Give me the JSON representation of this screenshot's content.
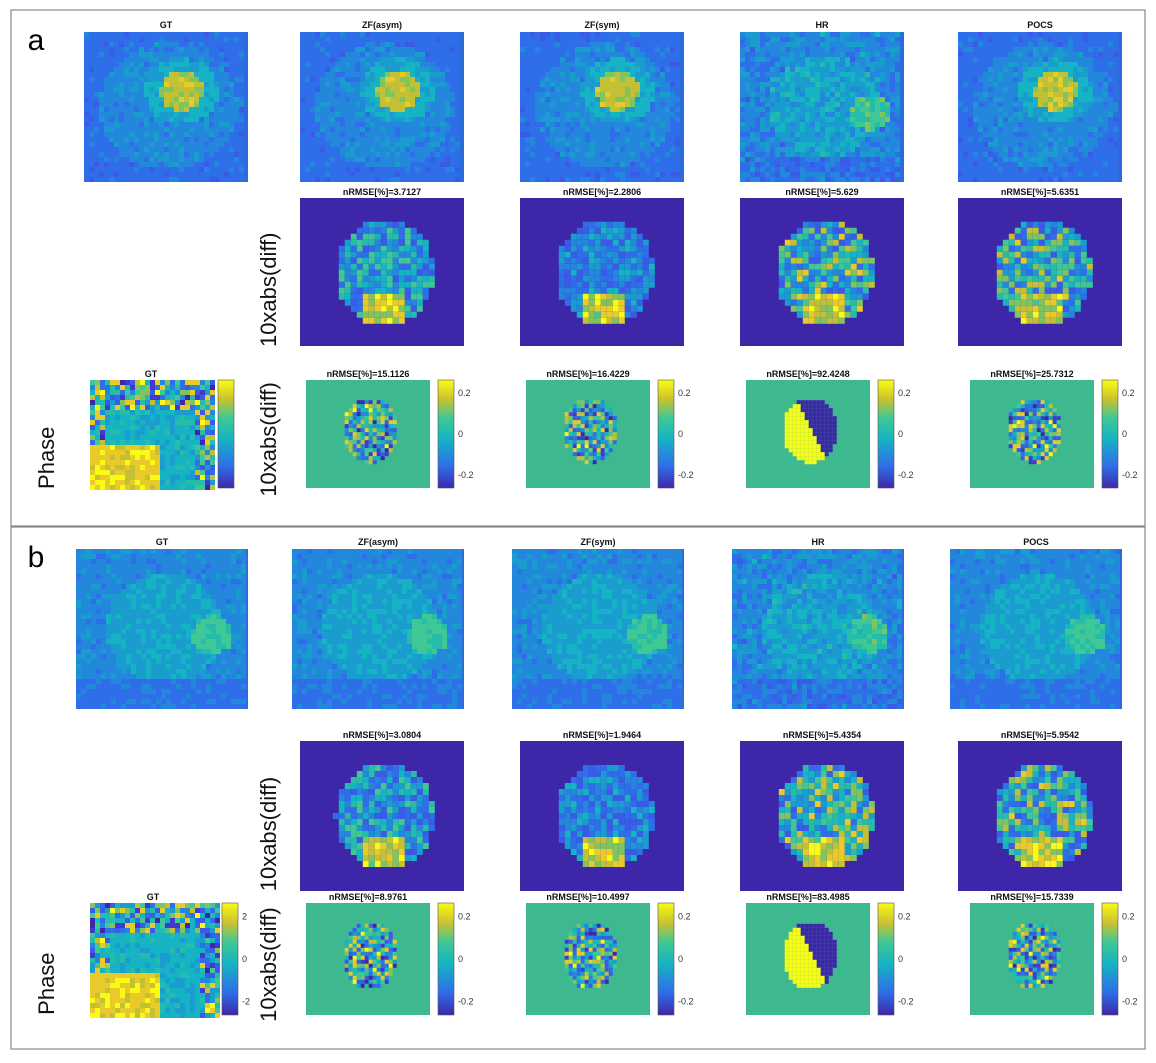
{
  "colors": {
    "parula_dark": "#3e26a8",
    "parula_blue": "#2f6ee9",
    "parula_teal": "#15b3c4",
    "parula_green": "#3fc895",
    "parula_yellow": "#f9fb15",
    "phase_bg": "#3eb98f",
    "panel_border": "#888888"
  },
  "panels": [
    {
      "letter": "a",
      "magnitude_titles": [
        "GT",
        "ZF(asym)",
        "ZF(sym)",
        "HR",
        "POCS"
      ],
      "diff_row_label": "10xabs(diff)",
      "diff_titles": [
        "nRMSE[%]=3.7127",
        "nRMSE[%]=2.2806",
        "nRMSE[%]=5.629",
        "nRMSE[%]=5.6351"
      ],
      "phase_row_label": "Phase",
      "phase_diff_row_label": "10xabs(diff)",
      "phase_gt_title": "GT",
      "phase_titles": [
        "nRMSE[%]=15.1126",
        "nRMSE[%]=16.4229",
        "nRMSE[%]=92.4248",
        "nRMSE[%]=25.7312"
      ],
      "gt_colorbar_ticks": [],
      "diff_colorbar_ticks": [
        "0.2",
        "0",
        "-0.2"
      ]
    },
    {
      "letter": "b",
      "magnitude_titles": [
        "GT",
        "ZF(asym)",
        "ZF(sym)",
        "HR",
        "POCS"
      ],
      "diff_row_label": "10xabs(diff)",
      "diff_titles": [
        "nRMSE[%]=3.0804",
        "nRMSE[%]=1.9464",
        "nRMSE[%]=5.4354",
        "nRMSE[%]=5.9542"
      ],
      "phase_row_label": "Phase",
      "phase_diff_row_label": "10xabs(diff)",
      "phase_gt_title": "GT",
      "phase_titles": [
        "nRMSE[%]=8.9761",
        "nRMSE[%]=10.4997",
        "nRMSE[%]=83.4985",
        "nRMSE[%]=15.7339"
      ],
      "gt_colorbar_ticks": [
        "2",
        "0",
        "-2"
      ],
      "diff_colorbar_ticks": [
        "0.2",
        "0",
        "-0.2"
      ]
    }
  ]
}
